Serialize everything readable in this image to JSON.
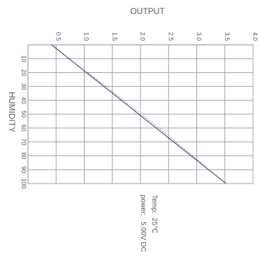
{
  "chart_data": {
    "type": "line",
    "title": "OUTPUT",
    "xlabel": "HUMIDITY",
    "ylabel": "",
    "x_ticks": [
      "10",
      "20",
      "30",
      "40",
      "50",
      "60",
      "70",
      "80",
      "90",
      "100"
    ],
    "y_ticks": [
      "0.5",
      "1.0",
      "1.5",
      "2.0",
      "2.5",
      "3.0",
      "3.5",
      "4.0"
    ],
    "xlim": [
      0,
      100
    ],
    "ylim": [
      0,
      4.0
    ],
    "grid": true,
    "orientation": "rotated-90-clockwise",
    "series": [
      {
        "style": "solid",
        "color": "#4a4f7a",
        "x": [
          0,
          10,
          20,
          30,
          40,
          50,
          60,
          70,
          80,
          90,
          100
        ],
        "y": [
          0.42,
          0.73,
          1.04,
          1.35,
          1.66,
          1.97,
          2.28,
          2.59,
          2.9,
          3.21,
          3.52
        ]
      },
      {
        "style": "dashed",
        "color": "#8fa0b8",
        "x": [
          20,
          30,
          40,
          50,
          60,
          70,
          80,
          90
        ],
        "y": [
          1.06,
          1.39,
          1.7,
          2.02,
          2.33,
          2.63,
          2.93,
          3.22
        ]
      }
    ],
    "annotations": [
      "Temp:  25℃",
      "power:   5.00V DC"
    ]
  }
}
